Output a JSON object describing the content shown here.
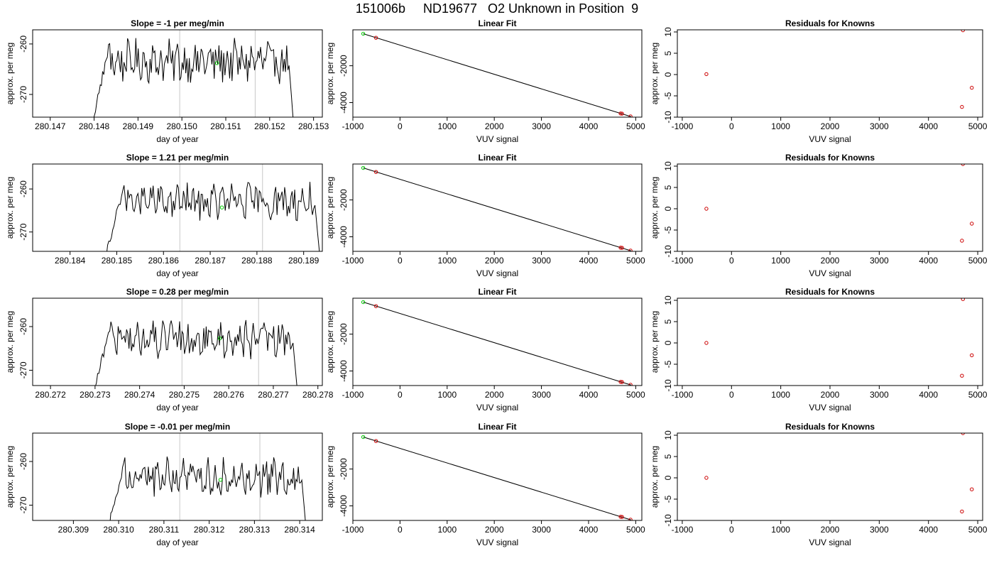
{
  "page": {
    "title": "151006b     ND19677   O2 Unknown in Position  9"
  },
  "colors": {
    "trace": "#000000",
    "vline": "#c8c8c8",
    "unknown_point": "#00cc00",
    "known_point": "#cc0000",
    "fit_line": "#000000"
  },
  "chart_data": [
    {
      "type": "line",
      "title": "Slope =  -1  per meg/min",
      "xlabel": "day of year",
      "ylabel": "approx. per meg",
      "xlim": [
        280.1466,
        280.1532
      ],
      "ylim": [
        -274.5,
        -257.2
      ],
      "xticks": [
        280.147,
        280.148,
        280.149,
        280.15,
        280.151,
        280.152,
        280.153
      ],
      "xtick_labels": [
        "280.147",
        "280.148",
        "280.149",
        "280.150",
        "280.151",
        "280.152",
        "280.153"
      ],
      "yticks": [
        -260,
        -270
      ],
      "ytick_labels": [
        "-260",
        "-270"
      ],
      "x_start": 280.14795,
      "x_end": 280.15255,
      "trace_level": -263.5,
      "vlines": [
        280.14995,
        280.15167
      ],
      "unknown_point": {
        "x": 280.1508,
        "y": -263.8
      }
    },
    {
      "type": "scatter",
      "title": "Linear Fit",
      "xlabel": "VUV signal",
      "ylabel": "approx. per meg",
      "xlim": [
        -1000,
        5130
      ],
      "ylim": [
        -4790,
        -50
      ],
      "xticks": [
        -1000,
        0,
        1000,
        2000,
        3000,
        4000,
        5000
      ],
      "xtick_labels": [
        "-1000",
        "0",
        "1000",
        "2000",
        "3000",
        "4000",
        "5000"
      ],
      "yticks": [
        -2000,
        -4000
      ],
      "ytick_labels": [
        "-2000",
        "-4000"
      ],
      "line": [
        [
          -780,
          -263
        ],
        [
          4900,
          -4760
        ]
      ],
      "unknown_point": {
        "x": -780,
        "y": -263
      },
      "known_points": [
        {
          "x": -510,
          "y": -480
        },
        {
          "x": 4680,
          "y": -4590
        },
        {
          "x": 4710,
          "y": -4600
        },
        {
          "x": 4890,
          "y": -4750
        }
      ]
    },
    {
      "type": "scatter",
      "title": "Residuals for Knowns",
      "xlabel": "VUV signal",
      "ylabel": "approx. per meg",
      "xlim": [
        -1100,
        5100
      ],
      "ylim": [
        -10,
        10.5
      ],
      "xticks": [
        -1000,
        0,
        1000,
        2000,
        3000,
        4000,
        5000
      ],
      "xtick_labels": [
        "-1000",
        "0",
        "1000",
        "2000",
        "3000",
        "4000",
        "5000"
      ],
      "yticks": [
        10,
        5,
        0,
        -5,
        -10
      ],
      "ytick_labels": [
        "10",
        "5",
        "0",
        "-5",
        "-10"
      ],
      "known_points": [
        {
          "x": -510,
          "y": 0.1
        },
        {
          "x": 4680,
          "y": -7.6
        },
        {
          "x": 4700,
          "y": 10.4
        },
        {
          "x": 4880,
          "y": -3.1
        }
      ]
    },
    {
      "type": "line",
      "title": "Slope =  1.21  per meg/min",
      "xlabel": "day of year",
      "ylabel": "approx. per meg",
      "xlim": [
        280.1832,
        280.1894
      ],
      "ylim": [
        -274.5,
        -254.2
      ],
      "xticks": [
        280.184,
        280.185,
        280.186,
        280.187,
        280.188,
        280.189
      ],
      "xtick_labels": [
        "280.184",
        "280.185",
        "280.186",
        "280.187",
        "280.188",
        "280.189"
      ],
      "yticks": [
        -260,
        -270
      ],
      "ytick_labels": [
        "-260",
        "-270"
      ],
      "x_start": 280.18475,
      "x_end": 280.18935,
      "trace_level": -263.0,
      "vlines": [
        280.18635,
        280.18812
      ],
      "unknown_point": {
        "x": 280.18725,
        "y": -264.3
      }
    },
    {
      "type": "scatter",
      "title": "Linear Fit",
      "xlabel": "VUV signal",
      "ylabel": "approx. per meg",
      "xlim": [
        -1000,
        5130
      ],
      "ylim": [
        -4790,
        -50
      ],
      "xticks": [
        -1000,
        0,
        1000,
        2000,
        3000,
        4000,
        5000
      ],
      "xtick_labels": [
        "-1000",
        "0",
        "1000",
        "2000",
        "3000",
        "4000",
        "5000"
      ],
      "yticks": [
        -2000,
        -4000
      ],
      "ytick_labels": [
        "-2000",
        "-4000"
      ],
      "line": [
        [
          -780,
          -263
        ],
        [
          4900,
          -4760
        ]
      ],
      "unknown_point": {
        "x": -780,
        "y": -263
      },
      "known_points": [
        {
          "x": -510,
          "y": -480
        },
        {
          "x": 4680,
          "y": -4590
        },
        {
          "x": 4710,
          "y": -4600
        },
        {
          "x": 4890,
          "y": -4750
        }
      ]
    },
    {
      "type": "scatter",
      "title": "Residuals for Knowns",
      "xlabel": "VUV signal",
      "ylabel": "approx. per meg",
      "xlim": [
        -1100,
        5100
      ],
      "ylim": [
        -10,
        10.5
      ],
      "xticks": [
        -1000,
        0,
        1000,
        2000,
        3000,
        4000,
        5000
      ],
      "xtick_labels": [
        "-1000",
        "0",
        "1000",
        "2000",
        "3000",
        "4000",
        "5000"
      ],
      "yticks": [
        10,
        5,
        0,
        -5,
        -10
      ],
      "ytick_labels": [
        "10",
        "5",
        "0",
        "-5",
        "-10"
      ],
      "known_points": [
        {
          "x": -510,
          "y": 0.0
        },
        {
          "x": 4680,
          "y": -7.5
        },
        {
          "x": 4700,
          "y": 10.5
        },
        {
          "x": 4880,
          "y": -3.5
        }
      ]
    },
    {
      "type": "line",
      "title": "Slope =  0.28  per meg/min",
      "xlabel": "day of year",
      "ylabel": "approx. per meg",
      "xlim": [
        280.2716,
        280.2781
      ],
      "ylim": [
        -273.5,
        -253.5
      ],
      "xticks": [
        280.272,
        280.273,
        280.274,
        280.275,
        280.276,
        280.277,
        280.278
      ],
      "xtick_labels": [
        "280.272",
        "280.273",
        "280.274",
        "280.275",
        "280.276",
        "280.277",
        "280.278"
      ],
      "yticks": [
        -260,
        -270
      ],
      "ytick_labels": [
        "-260",
        "-270"
      ],
      "x_start": 280.27295,
      "x_end": 280.27755,
      "trace_level": -263.0,
      "vlines": [
        280.27495,
        280.27667
      ],
      "unknown_point": {
        "x": 280.2758,
        "y": -262.7
      }
    },
    {
      "type": "scatter",
      "title": "Linear Fit",
      "xlabel": "VUV signal",
      "ylabel": "approx. per meg",
      "xlim": [
        -1000,
        5130
      ],
      "ylim": [
        -4790,
        -50
      ],
      "xticks": [
        -1000,
        0,
        1000,
        2000,
        3000,
        4000,
        5000
      ],
      "xtick_labels": [
        "-1000",
        "0",
        "1000",
        "2000",
        "3000",
        "4000",
        "5000"
      ],
      "yticks": [
        -2000,
        -4000
      ],
      "ytick_labels": [
        "-2000",
        "-4000"
      ],
      "line": [
        [
          -780,
          -263
        ],
        [
          4900,
          -4760
        ]
      ],
      "unknown_point": {
        "x": -780,
        "y": -263
      },
      "known_points": [
        {
          "x": -510,
          "y": -480
        },
        {
          "x": 4680,
          "y": -4590
        },
        {
          "x": 4710,
          "y": -4600
        },
        {
          "x": 4890,
          "y": -4750
        }
      ]
    },
    {
      "type": "scatter",
      "title": "Residuals for Knowns",
      "xlabel": "VUV signal",
      "ylabel": "approx. per meg",
      "xlim": [
        -1100,
        5100
      ],
      "ylim": [
        -10,
        10.5
      ],
      "xticks": [
        -1000,
        0,
        1000,
        2000,
        3000,
        4000,
        5000
      ],
      "xtick_labels": [
        "-1000",
        "0",
        "1000",
        "2000",
        "3000",
        "4000",
        "5000"
      ],
      "yticks": [
        10,
        5,
        0,
        -5,
        -10
      ],
      "ytick_labels": [
        "10",
        "5",
        "0",
        "-5",
        "-10"
      ],
      "known_points": [
        {
          "x": -510,
          "y": 0.0
        },
        {
          "x": 4680,
          "y": -7.7
        },
        {
          "x": 4700,
          "y": 10.3
        },
        {
          "x": 4880,
          "y": -2.9
        }
      ]
    },
    {
      "type": "line",
      "title": "Slope =  -0.01  per meg/min",
      "xlabel": "day of year",
      "ylabel": "approx. per meg",
      "xlim": [
        280.3081,
        280.3145
      ],
      "ylim": [
        -273.5,
        -253.5
      ],
      "xticks": [
        280.309,
        280.31,
        280.311,
        280.312,
        280.313,
        280.314
      ],
      "xtick_labels": [
        "280.309",
        "280.310",
        "280.311",
        "280.312",
        "280.313",
        "280.314"
      ],
      "yticks": [
        -260,
        -270
      ],
      "ytick_labels": [
        "-260",
        "-270"
      ],
      "x_start": 280.30975,
      "x_end": 280.31415,
      "trace_level": -263.5,
      "vlines": [
        280.31135,
        280.31312
      ],
      "unknown_point": {
        "x": 280.31225,
        "y": -264.2
      }
    },
    {
      "type": "scatter",
      "title": "Linear Fit",
      "xlabel": "VUV signal",
      "ylabel": "approx. per meg",
      "xlim": [
        -1000,
        5130
      ],
      "ylim": [
        -4790,
        -50
      ],
      "xticks": [
        -1000,
        0,
        1000,
        2000,
        3000,
        4000,
        5000
      ],
      "xtick_labels": [
        "-1000",
        "0",
        "1000",
        "2000",
        "3000",
        "4000",
        "5000"
      ],
      "yticks": [
        -2000,
        -4000
      ],
      "ytick_labels": [
        "-2000",
        "-4000"
      ],
      "line": [
        [
          -780,
          -263
        ],
        [
          4900,
          -4760
        ]
      ],
      "unknown_point": {
        "x": -780,
        "y": -263
      },
      "known_points": [
        {
          "x": -510,
          "y": -480
        },
        {
          "x": 4680,
          "y": -4590
        },
        {
          "x": 4710,
          "y": -4600
        },
        {
          "x": 4890,
          "y": -4750
        }
      ]
    },
    {
      "type": "scatter",
      "title": "Residuals for Knowns",
      "xlabel": "VUV signal",
      "ylabel": "approx. per meg",
      "xlim": [
        -1100,
        5100
      ],
      "ylim": [
        -10,
        10.5
      ],
      "xticks": [
        -1000,
        0,
        1000,
        2000,
        3000,
        4000,
        5000
      ],
      "xtick_labels": [
        "-1000",
        "0",
        "1000",
        "2000",
        "3000",
        "4000",
        "5000"
      ],
      "yticks": [
        10,
        5,
        0,
        -5,
        -10
      ],
      "ytick_labels": [
        "10",
        "5",
        "0",
        "-5",
        "-10"
      ],
      "known_points": [
        {
          "x": -510,
          "y": 0.0
        },
        {
          "x": 4680,
          "y": -7.9
        },
        {
          "x": 4700,
          "y": 10.5
        },
        {
          "x": 4880,
          "y": -2.7
        }
      ]
    }
  ]
}
